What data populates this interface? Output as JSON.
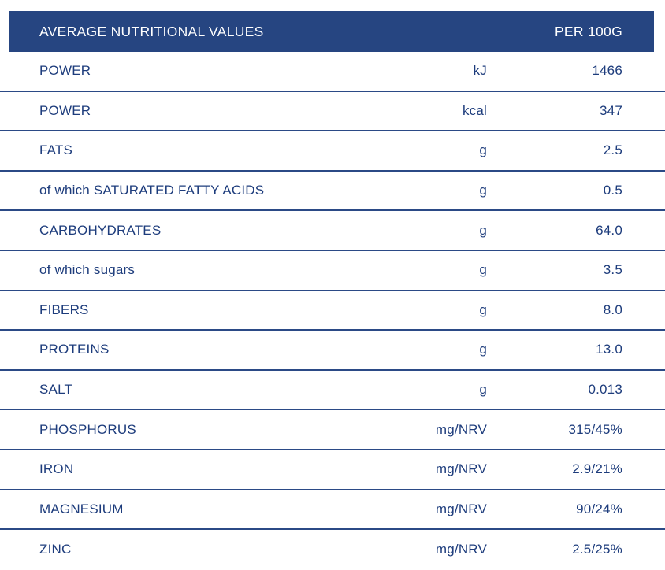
{
  "header": {
    "title": "AVERAGE NUTRITIONAL VALUES",
    "column": "PER 100G"
  },
  "colors": {
    "header_bg": "#264581",
    "header_text": "#ffffff",
    "text": "#1d3c7c",
    "divider": "#2b4a86"
  },
  "rows": [
    {
      "label": "POWER",
      "unit": "kJ",
      "value": "1466"
    },
    {
      "label": "POWER",
      "unit": "kcal",
      "value": "347"
    },
    {
      "label": "FATS",
      "unit": "g",
      "value": "2.5"
    },
    {
      "label": "of which SATURATED FATTY ACIDS",
      "unit": "g",
      "value": "0.5"
    },
    {
      "label": "CARBOHYDRATES",
      "unit": "g",
      "value": "64.0"
    },
    {
      "label": "of which sugars",
      "unit": "g",
      "value": "3.5"
    },
    {
      "label": "FIBERS",
      "unit": "g",
      "value": "8.0"
    },
    {
      "label": "PROTEINS",
      "unit": "g",
      "value": "13.0"
    },
    {
      "label": "SALT",
      "unit": "g",
      "value": "0.013"
    },
    {
      "label": "PHOSPHORUS",
      "unit": "mg/NRV",
      "value": "315/45%"
    },
    {
      "label": "IRON",
      "unit": "mg/NRV",
      "value": "2.9/21%"
    },
    {
      "label": "MAGNESIUM",
      "unit": "mg/NRV",
      "value": "90/24%"
    },
    {
      "label": "ZINC",
      "unit": "mg/NRV",
      "value": "2.5/25%"
    }
  ]
}
